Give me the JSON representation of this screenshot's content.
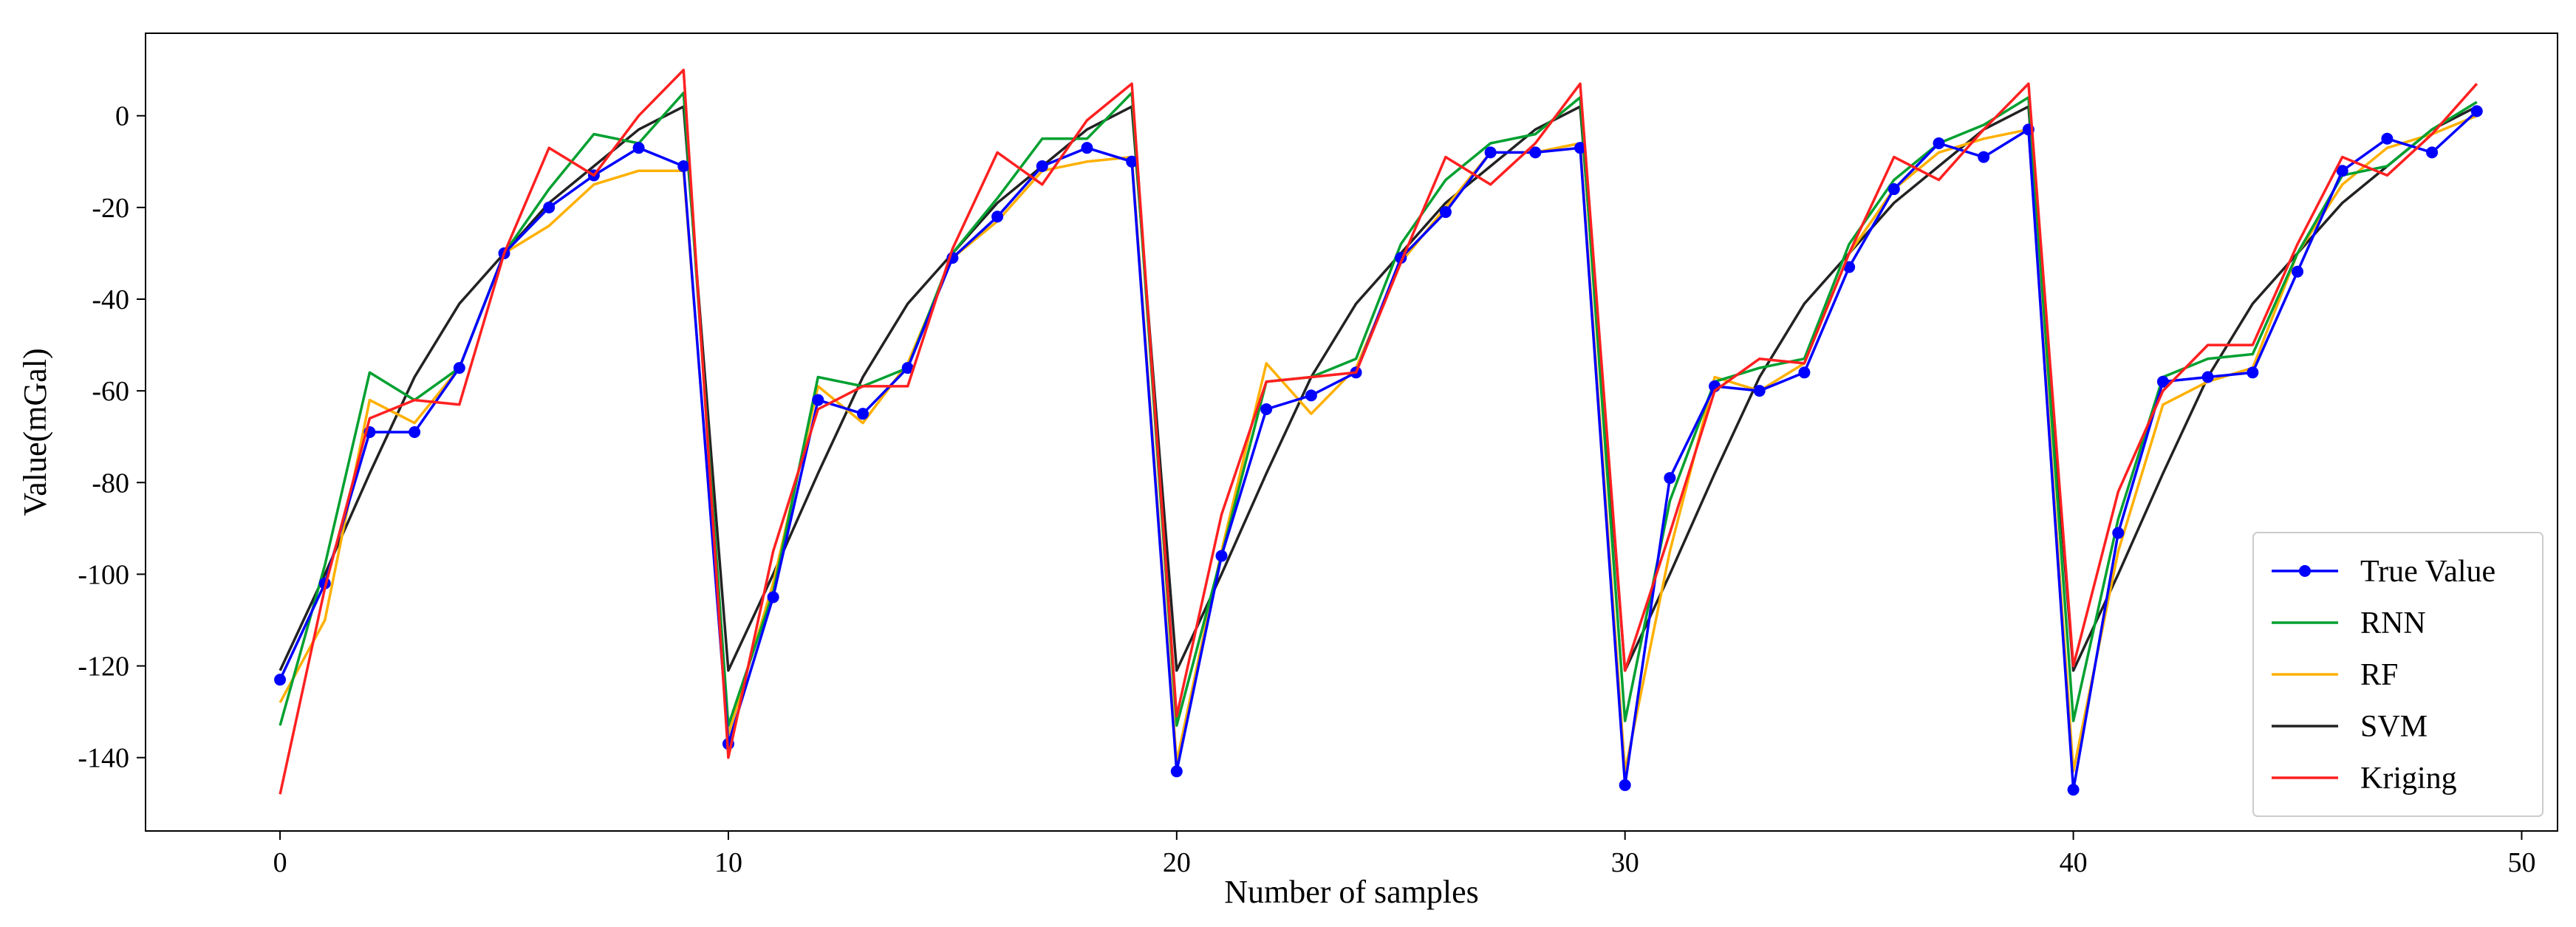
{
  "chart_data": {
    "type": "line",
    "title": "",
    "xlabel": "Number of samples",
    "ylabel": "Value(mGal)",
    "xlim": [
      -3,
      50.8
    ],
    "ylim": [
      -156,
      18
    ],
    "xticks": [
      0,
      10,
      20,
      30,
      40,
      50
    ],
    "yticks": [
      0,
      -20,
      -40,
      -60,
      -80,
      -100,
      -120,
      -140
    ],
    "grid": false,
    "legend_position": "lower-right",
    "x": [
      0,
      1,
      2,
      3,
      4,
      5,
      6,
      7,
      8,
      9,
      10,
      11,
      12,
      13,
      14,
      15,
      16,
      17,
      18,
      19,
      20,
      21,
      22,
      23,
      24,
      25,
      26,
      27,
      28,
      29,
      30,
      31,
      32,
      33,
      34,
      35,
      36,
      37,
      38,
      39,
      40,
      41,
      42,
      43,
      44,
      45,
      46,
      47,
      48,
      49
    ],
    "series": [
      {
        "name": "True Value",
        "color": "#0000ff",
        "marker": "circle",
        "values": [
          -123,
          -102,
          -69,
          -69,
          -55,
          -30,
          -20,
          -13,
          -7,
          -11,
          -137,
          -105,
          -62,
          -65,
          -55,
          -31,
          -22,
          -11,
          -7,
          -10,
          -143,
          -96,
          -64,
          -61,
          -56,
          -31,
          -21,
          -8,
          -8,
          -7,
          -146,
          -79,
          -59,
          -60,
          -56,
          -33,
          -16,
          -6,
          -9,
          -3,
          -147,
          -91,
          -58,
          -57,
          -56,
          -34,
          -12,
          -5,
          -8,
          1
        ]
      },
      {
        "name": "RNN",
        "color": "#00a030",
        "values": [
          -133,
          -98,
          -56,
          -62,
          -55,
          -30,
          -16,
          -4,
          -6,
          5,
          -133,
          -104,
          -57,
          -59,
          -55,
          -30,
          -18,
          -5,
          -5,
          5,
          -133,
          -96,
          -58,
          -57,
          -53,
          -28,
          -14,
          -6,
          -4,
          4,
          -132,
          -84,
          -58,
          -55,
          -53,
          -28,
          -14,
          -6,
          -2,
          4,
          -132,
          -88,
          -57,
          -53,
          -52,
          -30,
          -13,
          -11,
          -3,
          3
        ]
      },
      {
        "name": "RF",
        "color": "#ffb000",
        "values": [
          -128,
          -110,
          -62,
          -67,
          -55,
          -30,
          -24,
          -15,
          -12,
          -12,
          -135,
          -102,
          -59,
          -67,
          -54,
          -31,
          -23,
          -12,
          -10,
          -9,
          -141,
          -95,
          -54,
          -65,
          -55,
          -32,
          -20,
          -8,
          -8,
          -6,
          -143,
          -95,
          -57,
          -60,
          -54,
          -30,
          -16,
          -8,
          -5,
          -3,
          -143,
          -95,
          -63,
          -58,
          -55,
          -30,
          -15,
          -7,
          -4,
          0
        ]
      },
      {
        "name": "SVM",
        "color": "#222222",
        "values": [
          -121,
          -100,
          -78,
          -57,
          -41,
          -30,
          -19,
          -11,
          -3,
          2,
          -121,
          -100,
          -78,
          -57,
          -41,
          -30,
          -19,
          -11,
          -3,
          2,
          -121,
          -100,
          -78,
          -57,
          -41,
          -30,
          -19,
          -11,
          -3,
          2,
          -121,
          -100,
          -78,
          -57,
          -41,
          -30,
          -19,
          -11,
          -3,
          2,
          -121,
          -100,
          -78,
          -57,
          -41,
          -30,
          -19,
          -11,
          -3,
          2
        ]
      },
      {
        "name": "Kriging",
        "color": "#ff2020",
        "values": [
          -148,
          -103,
          -66,
          -62,
          -63,
          -30,
          -7,
          -13,
          0,
          10,
          -140,
          -95,
          -64,
          -59,
          -59,
          -29,
          -8,
          -15,
          -1,
          7,
          -131,
          -87,
          -58,
          -57,
          -56,
          -32,
          -9,
          -15,
          -6,
          7,
          -121,
          -91,
          -60,
          -53,
          -54,
          -30,
          -9,
          -14,
          -3,
          7,
          -120,
          -82,
          -60,
          -50,
          -50,
          -28,
          -9,
          -13,
          -4,
          7
        ]
      }
    ]
  }
}
